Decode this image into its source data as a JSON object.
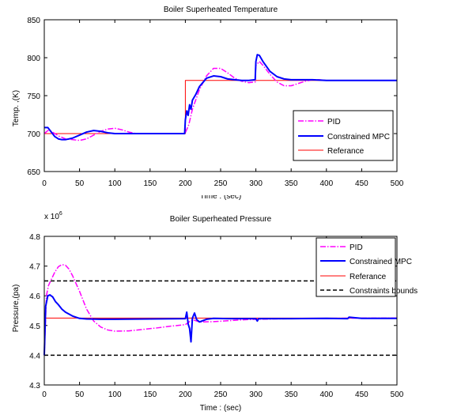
{
  "chart_data": [
    {
      "type": "line",
      "title": "Boiler Superheated Temperature",
      "xlabel": "Time : (sec)",
      "ylabel": "Temp. ,(K)",
      "xlim": [
        0,
        500
      ],
      "ylim": [
        650,
        850
      ],
      "xticks": [
        "0",
        "50",
        "100",
        "150",
        "200",
        "250",
        "300",
        "350",
        "400",
        "450",
        "500"
      ],
      "yticks": [
        "650",
        "700",
        "750",
        "800",
        "850"
      ],
      "legend_position": "lower-right",
      "series": [
        {
          "name": "PID",
          "color": "#ff00ff",
          "style": "dashdot",
          "x": [
            0,
            5,
            10,
            20,
            30,
            40,
            50,
            60,
            70,
            80,
            90,
            100,
            110,
            120,
            130,
            140,
            150,
            170,
            199,
            200,
            205,
            210,
            220,
            230,
            240,
            250,
            260,
            270,
            280,
            290,
            299,
            300,
            305,
            310,
            320,
            330,
            340,
            350,
            360,
            370,
            380,
            390,
            400,
            420,
            450,
            500
          ],
          "y": [
            700,
            704,
            703,
            697,
            693,
            692,
            691,
            693,
            698,
            703,
            706,
            707,
            705,
            702,
            700,
            700,
            700,
            700,
            700,
            701,
            712,
            732,
            758,
            776,
            786,
            786,
            780,
            773,
            769,
            767,
            768,
            790,
            795,
            790,
            778,
            768,
            763,
            763,
            766,
            769,
            771,
            771,
            770,
            770,
            770,
            770
          ]
        },
        {
          "name": "Constrained MPC",
          "color": "#0000ff",
          "style": "solid",
          "x": [
            0,
            5,
            10,
            15,
            20,
            25,
            30,
            40,
            50,
            60,
            70,
            80,
            90,
            100,
            110,
            120,
            150,
            199,
            200,
            202,
            204,
            206,
            208,
            210,
            215,
            220,
            230,
            240,
            250,
            260,
            270,
            280,
            290,
            299,
            300,
            302,
            305,
            310,
            320,
            330,
            340,
            350,
            380,
            400,
            450,
            500
          ],
          "y": [
            708,
            708,
            702,
            696,
            693,
            692,
            692,
            694,
            698,
            702,
            704,
            703,
            701,
            700,
            700,
            700,
            700,
            700,
            718,
            730,
            724,
            738,
            732,
            744,
            752,
            762,
            773,
            776,
            775,
            772,
            771,
            770,
            770,
            771,
            795,
            804,
            803,
            795,
            782,
            775,
            772,
            771,
            771,
            770,
            770,
            770
          ]
        },
        {
          "name": "Referance",
          "color": "#ff0000",
          "style": "thin",
          "x": [
            0,
            200,
            200,
            500
          ],
          "y": [
            700,
            700,
            770,
            770
          ]
        }
      ]
    },
    {
      "type": "line",
      "title": "Boiler Superheated Pressure",
      "xlabel": "Time : (sec)",
      "ylabel": "Pressure,(pa)",
      "exponent_label": "x 10",
      "exponent_power": "6",
      "xlim": [
        0,
        500
      ],
      "ylim": [
        4.3,
        4.8
      ],
      "xticks": [
        "0",
        "50",
        "100",
        "150",
        "200",
        "250",
        "300",
        "350",
        "400",
        "450",
        "500"
      ],
      "yticks": [
        "4.3",
        "4.4",
        "4.5",
        "4.6",
        "4.7",
        "4.8"
      ],
      "legend_position": "top-right",
      "series": [
        {
          "name": "PID",
          "color": "#ff00ff",
          "style": "dashdot",
          "x": [
            0,
            3,
            6,
            10,
            15,
            20,
            25,
            30,
            35,
            40,
            50,
            60,
            70,
            80,
            90,
            100,
            120,
            140,
            160,
            180,
            200,
            210,
            220,
            240,
            260,
            280,
            300,
            350,
            400,
            450,
            500
          ],
          "y": [
            4.4,
            4.6,
            4.635,
            4.655,
            4.68,
            4.698,
            4.705,
            4.703,
            4.69,
            4.668,
            4.615,
            4.555,
            4.515,
            4.495,
            4.485,
            4.481,
            4.482,
            4.487,
            4.492,
            4.498,
            4.503,
            4.52,
            4.512,
            4.513,
            4.516,
            4.519,
            4.521,
            4.523,
            4.524,
            4.525,
            4.525
          ]
        },
        {
          "name": "Constrained MPC",
          "color": "#0000ff",
          "style": "solid",
          "x": [
            0,
            2,
            5,
            8,
            12,
            16,
            20,
            25,
            30,
            40,
            50,
            60,
            80,
            100,
            150,
            200,
            202,
            204,
            206,
            208,
            210,
            213,
            216,
            220,
            230,
            240,
            260,
            300,
            302,
            304,
            350,
            400,
            430,
            432,
            450,
            500
          ],
          "y": [
            4.4,
            4.565,
            4.6,
            4.603,
            4.596,
            4.58,
            4.57,
            4.555,
            4.545,
            4.532,
            4.524,
            4.522,
            4.521,
            4.521,
            4.522,
            4.523,
            4.545,
            4.505,
            4.49,
            4.445,
            4.525,
            4.542,
            4.52,
            4.512,
            4.521,
            4.524,
            4.523,
            4.523,
            4.515,
            4.523,
            4.523,
            4.524,
            4.523,
            4.528,
            4.524,
            4.524
          ]
        },
        {
          "name": "Referance",
          "color": "#ff0000",
          "style": "thin",
          "x": [
            0,
            500
          ],
          "y": [
            4.525,
            4.525
          ]
        },
        {
          "name": "Constraints bounds",
          "color": "#000000",
          "style": "dashed",
          "x": [
            0,
            500
          ],
          "y": [
            4.65,
            4.65
          ]
        },
        {
          "name": "Constraints bounds lower",
          "legend": false,
          "color": "#000000",
          "style": "dashed",
          "x": [
            0,
            500
          ],
          "y": [
            4.4,
            4.4
          ]
        }
      ]
    }
  ]
}
